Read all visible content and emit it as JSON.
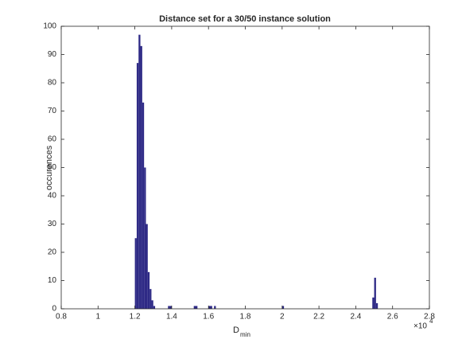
{
  "chart_data": {
    "type": "histogram",
    "title": "Distance set for a 30/50 instance solution",
    "xlabel": "D",
    "xlabel_sub": "min",
    "ylabel": "occurences",
    "x_multiplier": "×10",
    "x_multiplier_exp": "4",
    "color": "#2e2a86",
    "bins": [
      1.2,
      1.21,
      1.22,
      1.23,
      1.24,
      1.25,
      1.26,
      1.27,
      1.28,
      1.29,
      1.3,
      1.31,
      1.32,
      1.33,
      1.34,
      1.35,
      1.36,
      1.37,
      1.38,
      1.39,
      1.4,
      1.41,
      1.42,
      1.43,
      1.44,
      1.45,
      1.46,
      1.47,
      1.48,
      1.49,
      1.5,
      1.51,
      1.52,
      1.53,
      1.54,
      1.55,
      1.56,
      1.57,
      1.58,
      1.59,
      1.6,
      1.61,
      1.62,
      1.63,
      1.64,
      1.65,
      1.66,
      1.67,
      1.68,
      1.69,
      1.7,
      1.71,
      1.72,
      1.73,
      1.74,
      1.75,
      1.76,
      1.77,
      1.78,
      1.79,
      1.8,
      1.81,
      1.82,
      1.83,
      1.84,
      1.85,
      1.86,
      1.87,
      1.88,
      1.89,
      1.9,
      1.91,
      1.92,
      1.93,
      1.94,
      1.95,
      1.96,
      1.97,
      1.98,
      1.99,
      2.0,
      2.01,
      2.02,
      2.03,
      2.04,
      2.05,
      2.06,
      2.07,
      2.08,
      2.09,
      2.1,
      2.11,
      2.12,
      2.13,
      2.14,
      2.15,
      2.16,
      2.17,
      2.18,
      2.19,
      2.2,
      2.21,
      2.22,
      2.23,
      2.24,
      2.25,
      2.26,
      2.27,
      2.28,
      2.29,
      2.3,
      2.31,
      2.32,
      2.33,
      2.34,
      2.35,
      2.36,
      2.37,
      2.38,
      2.39,
      2.4,
      2.41,
      2.42,
      2.43,
      2.44,
      2.45,
      2.46,
      2.47,
      2.48,
      2.49,
      2.5,
      2.51,
      2.52
    ],
    "values": [
      25,
      87,
      97,
      93,
      73,
      50,
      30,
      13,
      7,
      3,
      1,
      0,
      0,
      0,
      0,
      0,
      0,
      0,
      1,
      1,
      0,
      0,
      0,
      0,
      0,
      0,
      0,
      0,
      0,
      0,
      0,
      0,
      1,
      1,
      0,
      0,
      0,
      0,
      0,
      0,
      1,
      1,
      0,
      1,
      0,
      0,
      0,
      0,
      0,
      0,
      0,
      0,
      0,
      0,
      0,
      0,
      0,
      0,
      0,
      0,
      0,
      0,
      0,
      0,
      0,
      0,
      0,
      0,
      0,
      0,
      0,
      0,
      0,
      0,
      0,
      0,
      0,
      0,
      0,
      0,
      1,
      0,
      0,
      0,
      0,
      0,
      0,
      0,
      0,
      0,
      0,
      0,
      0,
      0,
      0,
      0,
      0,
      0,
      0,
      0,
      0,
      0,
      0,
      0,
      0,
      0,
      0,
      0,
      0,
      0,
      0,
      0,
      0,
      0,
      0,
      0,
      0,
      0,
      0,
      0,
      0,
      0,
      0,
      0,
      0,
      0,
      0,
      0,
      0,
      4,
      11,
      2
    ],
    "xlim": [
      0.8,
      2.8
    ],
    "xticks": [
      0.8,
      1,
      1.2,
      1.4,
      1.6,
      1.8,
      2,
      2.2,
      2.4,
      2.6,
      2.8
    ],
    "ylim": [
      0,
      100
    ],
    "yticks": [
      0,
      10,
      20,
      30,
      40,
      50,
      60,
      70,
      80,
      90,
      100
    ]
  }
}
